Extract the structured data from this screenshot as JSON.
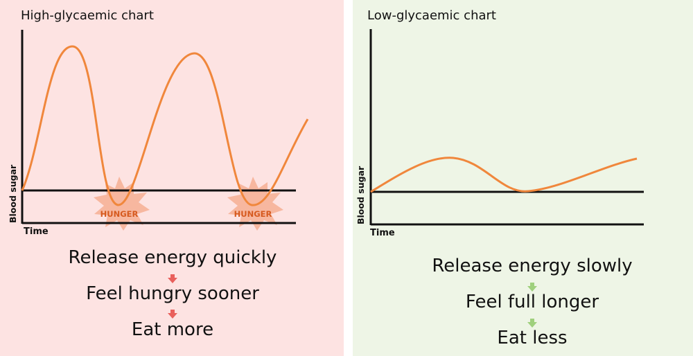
{
  "high": {
    "title": "High-glycaemic chart",
    "ylabel": "Blood sugar",
    "xlabel": "Time",
    "hunger_label": "HUNGER",
    "steps": [
      "Release energy quickly",
      "Feel hungry sooner",
      "Eat more"
    ],
    "arrow_color": "#e9605c",
    "curve_color": "#f0873c",
    "burst_color": "#f7b49b"
  },
  "low": {
    "title": "Low-glycaemic chart",
    "ylabel": "Blood sugar",
    "xlabel": "Time",
    "steps": [
      "Release energy slowly",
      "Feel full longer",
      "Eat less"
    ],
    "arrow_color": "#9fd07d",
    "curve_color": "#f0873c"
  }
}
